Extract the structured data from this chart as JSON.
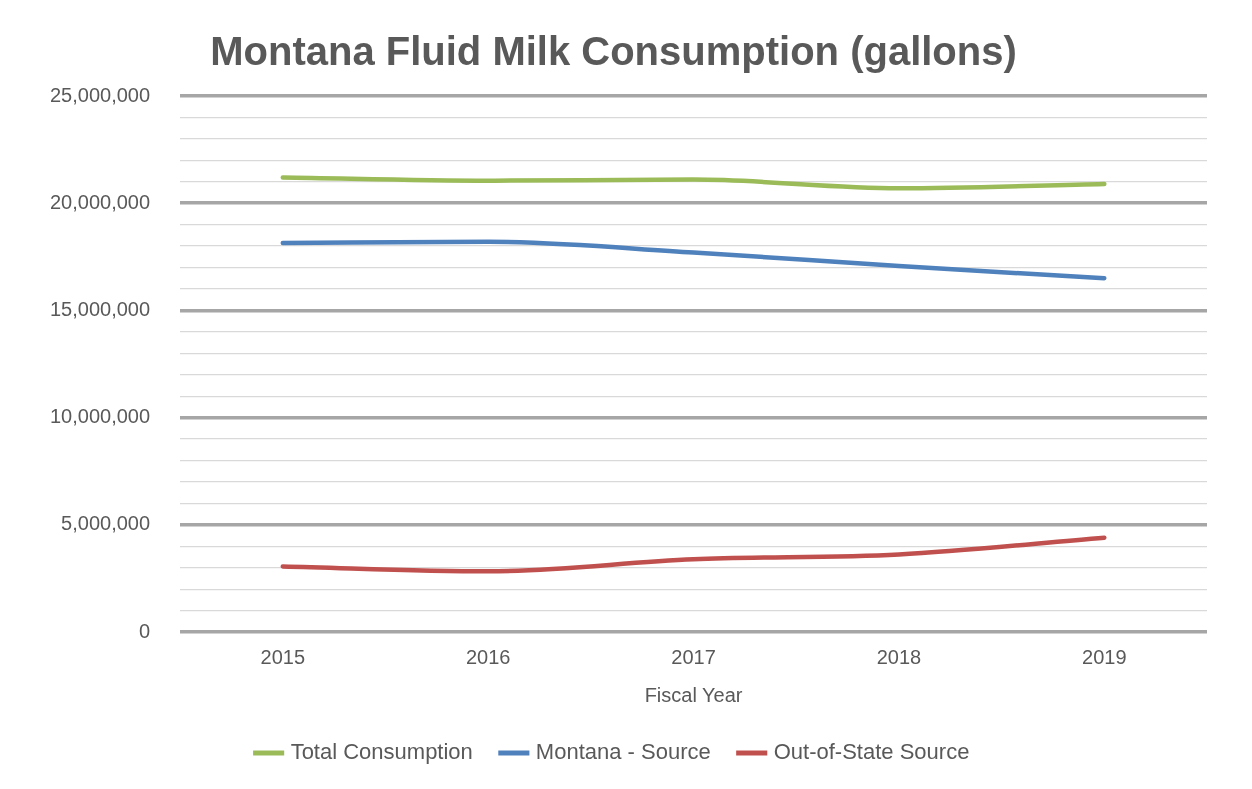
{
  "chart_data": {
    "type": "line",
    "title": "Montana Fluid Milk Consumption (gallons)",
    "xlabel": "Fiscal Year",
    "categories": [
      "2015",
      "2016",
      "2017",
      "2018",
      "2019"
    ],
    "series": [
      {
        "name": "Total Consumption",
        "color": "#9bbb59",
        "values": [
          21200000,
          21050000,
          21100000,
          20700000,
          20900000
        ]
      },
      {
        "name": "Montana - Source",
        "color": "#4f81bd",
        "values": [
          18140000,
          18200000,
          17700000,
          17070000,
          16500000
        ]
      },
      {
        "name": "Out-of-State Source",
        "color": "#c0504d",
        "values": [
          3060000,
          2830000,
          3390000,
          3620000,
          4400000
        ]
      }
    ],
    "ylim": [
      0,
      25000000
    ],
    "yticks": [
      0,
      {
        "value": 1000000,
        "label": null
      },
      {
        "value": 2000000,
        "label": null
      },
      {
        "value": 3000000,
        "label": null
      },
      {
        "value": 4000000,
        "label": null
      },
      {
        "value": 5000000,
        "label": "5,000,000"
      },
      {
        "value": 6000000,
        "label": null
      },
      {
        "value": 7000000,
        "label": null
      },
      {
        "value": 8000000,
        "label": null
      },
      {
        "value": 9000000,
        "label": null
      },
      {
        "value": 10000000,
        "label": "10,000,000"
      },
      {
        "value": 11000000,
        "label": null
      },
      {
        "value": 12000000,
        "label": null
      },
      {
        "value": 13000000,
        "label": null
      },
      {
        "value": 14000000,
        "label": null
      },
      {
        "value": 15000000,
        "label": "15,000,000"
      },
      {
        "value": 16000000,
        "label": null
      },
      {
        "value": 17000000,
        "label": null
      },
      {
        "value": 18000000,
        "label": null
      },
      {
        "value": 19000000,
        "label": null
      },
      {
        "value": 20000000,
        "label": "20,000,000"
      },
      {
        "value": 21000000,
        "label": null
      },
      {
        "value": 22000000,
        "label": null
      },
      {
        "value": 23000000,
        "label": null
      },
      {
        "value": 24000000,
        "label": null
      },
      {
        "value": 25000000,
        "label": "25,000,000"
      }
    ],
    "grid": "y",
    "legend": "bottom",
    "marker": "none",
    "line_style": "solid"
  }
}
